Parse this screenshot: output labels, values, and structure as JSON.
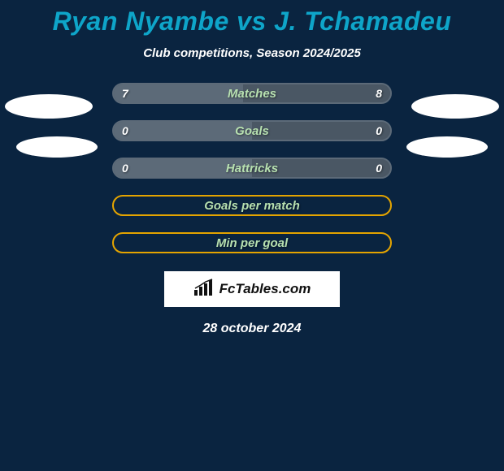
{
  "title": "Ryan Nyambe vs J. Tchamadeu",
  "title_color": "#0ea5c9",
  "subtitle": "Club competitions, Season 2024/2025",
  "background_color": "#0a2440",
  "text_color": "#ffffff",
  "colors": {
    "player1_fill": "#5c6a78",
    "player2_fill": "#4a5764",
    "empty_border": "#e4a400",
    "empty_fill": "#0a2440",
    "label_color": "#b7e0b0"
  },
  "bars": [
    {
      "label": "Matches",
      "left_value": "7",
      "right_value": "8",
      "left_pct": 46.7,
      "right_pct": 53.3,
      "show_values": true,
      "filled": true
    },
    {
      "label": "Goals",
      "left_value": "0",
      "right_value": "0",
      "left_pct": 50,
      "right_pct": 50,
      "show_values": true,
      "filled": true
    },
    {
      "label": "Hattricks",
      "left_value": "0",
      "right_value": "0",
      "left_pct": 50,
      "right_pct": 50,
      "show_values": true,
      "filled": true
    },
    {
      "label": "Goals per match",
      "left_value": "",
      "right_value": "",
      "left_pct": 0,
      "right_pct": 0,
      "show_values": false,
      "filled": false
    },
    {
      "label": "Min per goal",
      "left_value": "",
      "right_value": "",
      "left_pct": 0,
      "right_pct": 0,
      "show_values": false,
      "filled": false
    }
  ],
  "footer_brand": "FcTables.com",
  "date": "28 october 2024",
  "ellipse_color": "#ffffff"
}
